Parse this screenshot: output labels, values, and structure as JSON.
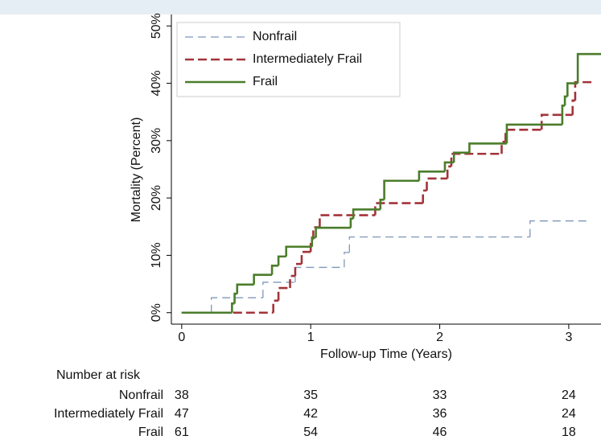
{
  "chart_data": {
    "type": "step",
    "ylabel": "Mortality (Percent)",
    "xlabel": "Follow-up Time (Years)",
    "xlim": [
      -0.08,
      3.25
    ],
    "xticks": [
      0,
      1,
      2,
      3
    ],
    "ylim": [
      -2,
      52
    ],
    "yticks": [
      {
        "value": 0,
        "label": "0%"
      },
      {
        "value": 10,
        "label": "10%"
      },
      {
        "value": 20,
        "label": "20%"
      },
      {
        "value": 30,
        "label": "30%"
      },
      {
        "value": 40,
        "label": "40%"
      },
      {
        "value": 50,
        "label": "50%"
      }
    ],
    "legend": "upper left",
    "series": [
      {
        "name": "Nonfrail",
        "color": "#7f97bb",
        "dash": "10,6",
        "width": 1.3,
        "x": [
          0,
          0.23,
          0.63,
          0.88,
          1.26,
          1.3,
          2.7,
          3.17
        ],
        "values": [
          0,
          2.6,
          5.3,
          7.9,
          10.5,
          13.2,
          16.0,
          16.0
        ]
      },
      {
        "name": "Intermediately Frail",
        "color": "#a3343a",
        "dash": "11,5",
        "width": 2.6,
        "x": [
          0,
          0.71,
          0.75,
          0.84,
          0.88,
          0.93,
          1.0,
          1.02,
          1.07,
          1.5,
          1.87,
          1.9,
          2.06,
          2.09,
          2.48,
          2.51,
          2.79,
          3.03,
          3.05,
          3.19
        ],
        "values": [
          0,
          2.1,
          4.3,
          6.4,
          8.5,
          10.6,
          12.8,
          14.9,
          17.0,
          19.1,
          21.3,
          23.4,
          25.5,
          27.7,
          29.8,
          31.9,
          34.5,
          37.0,
          40.2,
          40.2
        ]
      },
      {
        "name": "Frail",
        "color": "#4b7d2b",
        "dash": "",
        "width": 2.6,
        "x": [
          0,
          0.39,
          0.41,
          0.43,
          0.56,
          0.7,
          0.75,
          0.81,
          1.01,
          1.04,
          1.31,
          1.33,
          1.54,
          1.57,
          1.84,
          2.04,
          2.11,
          2.23,
          2.52,
          2.95,
          2.97,
          2.99,
          3.07,
          3.25
        ],
        "values": [
          0,
          1.6,
          3.3,
          4.9,
          6.6,
          8.2,
          9.8,
          11.5,
          13.1,
          14.8,
          16.4,
          18.0,
          19.7,
          23.0,
          24.6,
          26.2,
          27.9,
          29.5,
          32.8,
          36.1,
          37.7,
          40.0,
          45.1,
          45.1
        ]
      }
    ],
    "risk_table": {
      "title": "Number at risk",
      "rows": [
        {
          "name": "Nonfrail",
          "values": [
            38,
            35,
            33,
            24
          ]
        },
        {
          "name": "Intermediately Frail",
          "values": [
            47,
            42,
            36,
            24
          ]
        },
        {
          "name": "Frail",
          "values": [
            61,
            54,
            46,
            18
          ]
        }
      ]
    }
  }
}
